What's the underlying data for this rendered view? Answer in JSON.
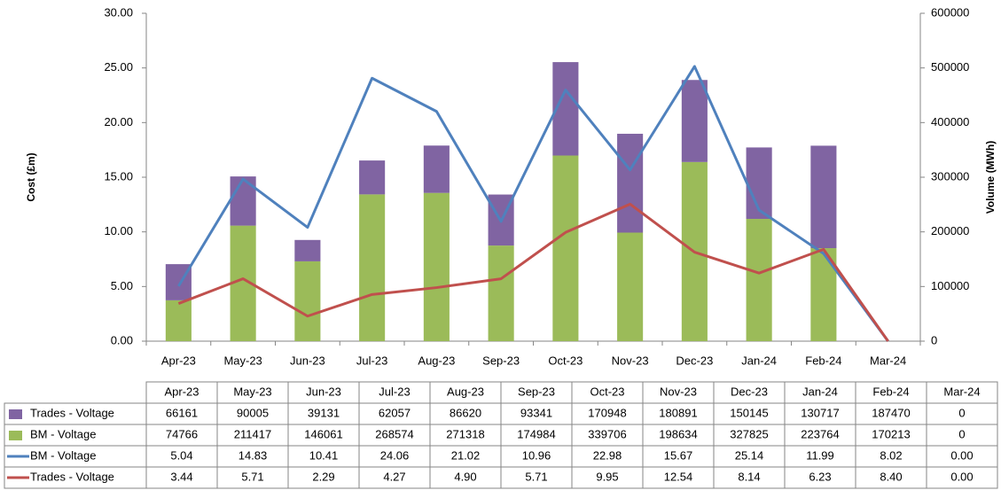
{
  "chart_data": {
    "type": "combo",
    "categories": [
      "Apr-23",
      "May-23",
      "Jun-23",
      "Jul-23",
      "Aug-23",
      "Sep-23",
      "Oct-23",
      "Nov-23",
      "Dec-23",
      "Jan-24",
      "Feb-24",
      "Mar-24"
    ],
    "y_label": "Cost (£m)",
    "y2_label": "Volume (MWh)",
    "ylim": [
      0,
      30
    ],
    "yticks": [
      {
        "value": 0,
        "label": "0.00"
      },
      {
        "value": 5,
        "label": "5.00"
      },
      {
        "value": 10,
        "label": "10.00"
      },
      {
        "value": 15,
        "label": "15.00"
      },
      {
        "value": 20,
        "label": "20.00"
      },
      {
        "value": 25,
        "label": "25.00"
      },
      {
        "value": 30,
        "label": "30.00"
      }
    ],
    "y2lim": [
      0,
      600000
    ],
    "y2ticks": [
      0,
      100000,
      200000,
      300000,
      400000,
      500000,
      600000
    ],
    "series": [
      {
        "name": "Trades - Voltage",
        "type": "bar",
        "axis": "y2",
        "color": "#8064a2",
        "values": [
          66161,
          90005,
          39131,
          62057,
          86620,
          93341,
          170948,
          180891,
          150145,
          130717,
          187470,
          0
        ]
      },
      {
        "name": "BM - Voltage",
        "type": "bar",
        "axis": "y2",
        "color": "#9bbb59",
        "values": [
          74766,
          211417,
          146061,
          268574,
          271318,
          174984,
          339706,
          198634,
          327825,
          223764,
          170213,
          0
        ]
      },
      {
        "name": "BM - Voltage",
        "type": "line",
        "color": "#4f81bd",
        "values": [
          5.04,
          14.83,
          10.41,
          24.06,
          21.02,
          10.96,
          22.98,
          15.67,
          25.14,
          11.99,
          8.02,
          0
        ],
        "value_labels": [
          "5.04",
          "14.83",
          "10.41",
          "24.06",
          "21.02",
          "10.96",
          "22.98",
          "15.67",
          "25.14",
          "11.99",
          "8.02",
          "0.00"
        ]
      },
      {
        "name": "Trades - Voltage",
        "type": "line",
        "color": "#c0504d",
        "values": [
          3.44,
          5.71,
          2.29,
          4.27,
          4.9,
          5.71,
          9.95,
          12.54,
          8.14,
          6.23,
          8.4,
          0
        ],
        "value_labels": [
          "3.44",
          "5.71",
          "2.29",
          "4.27",
          "4.90",
          "5.71",
          "9.95",
          "12.54",
          "8.14",
          "6.23",
          "8.40",
          "0.00"
        ]
      }
    ]
  }
}
